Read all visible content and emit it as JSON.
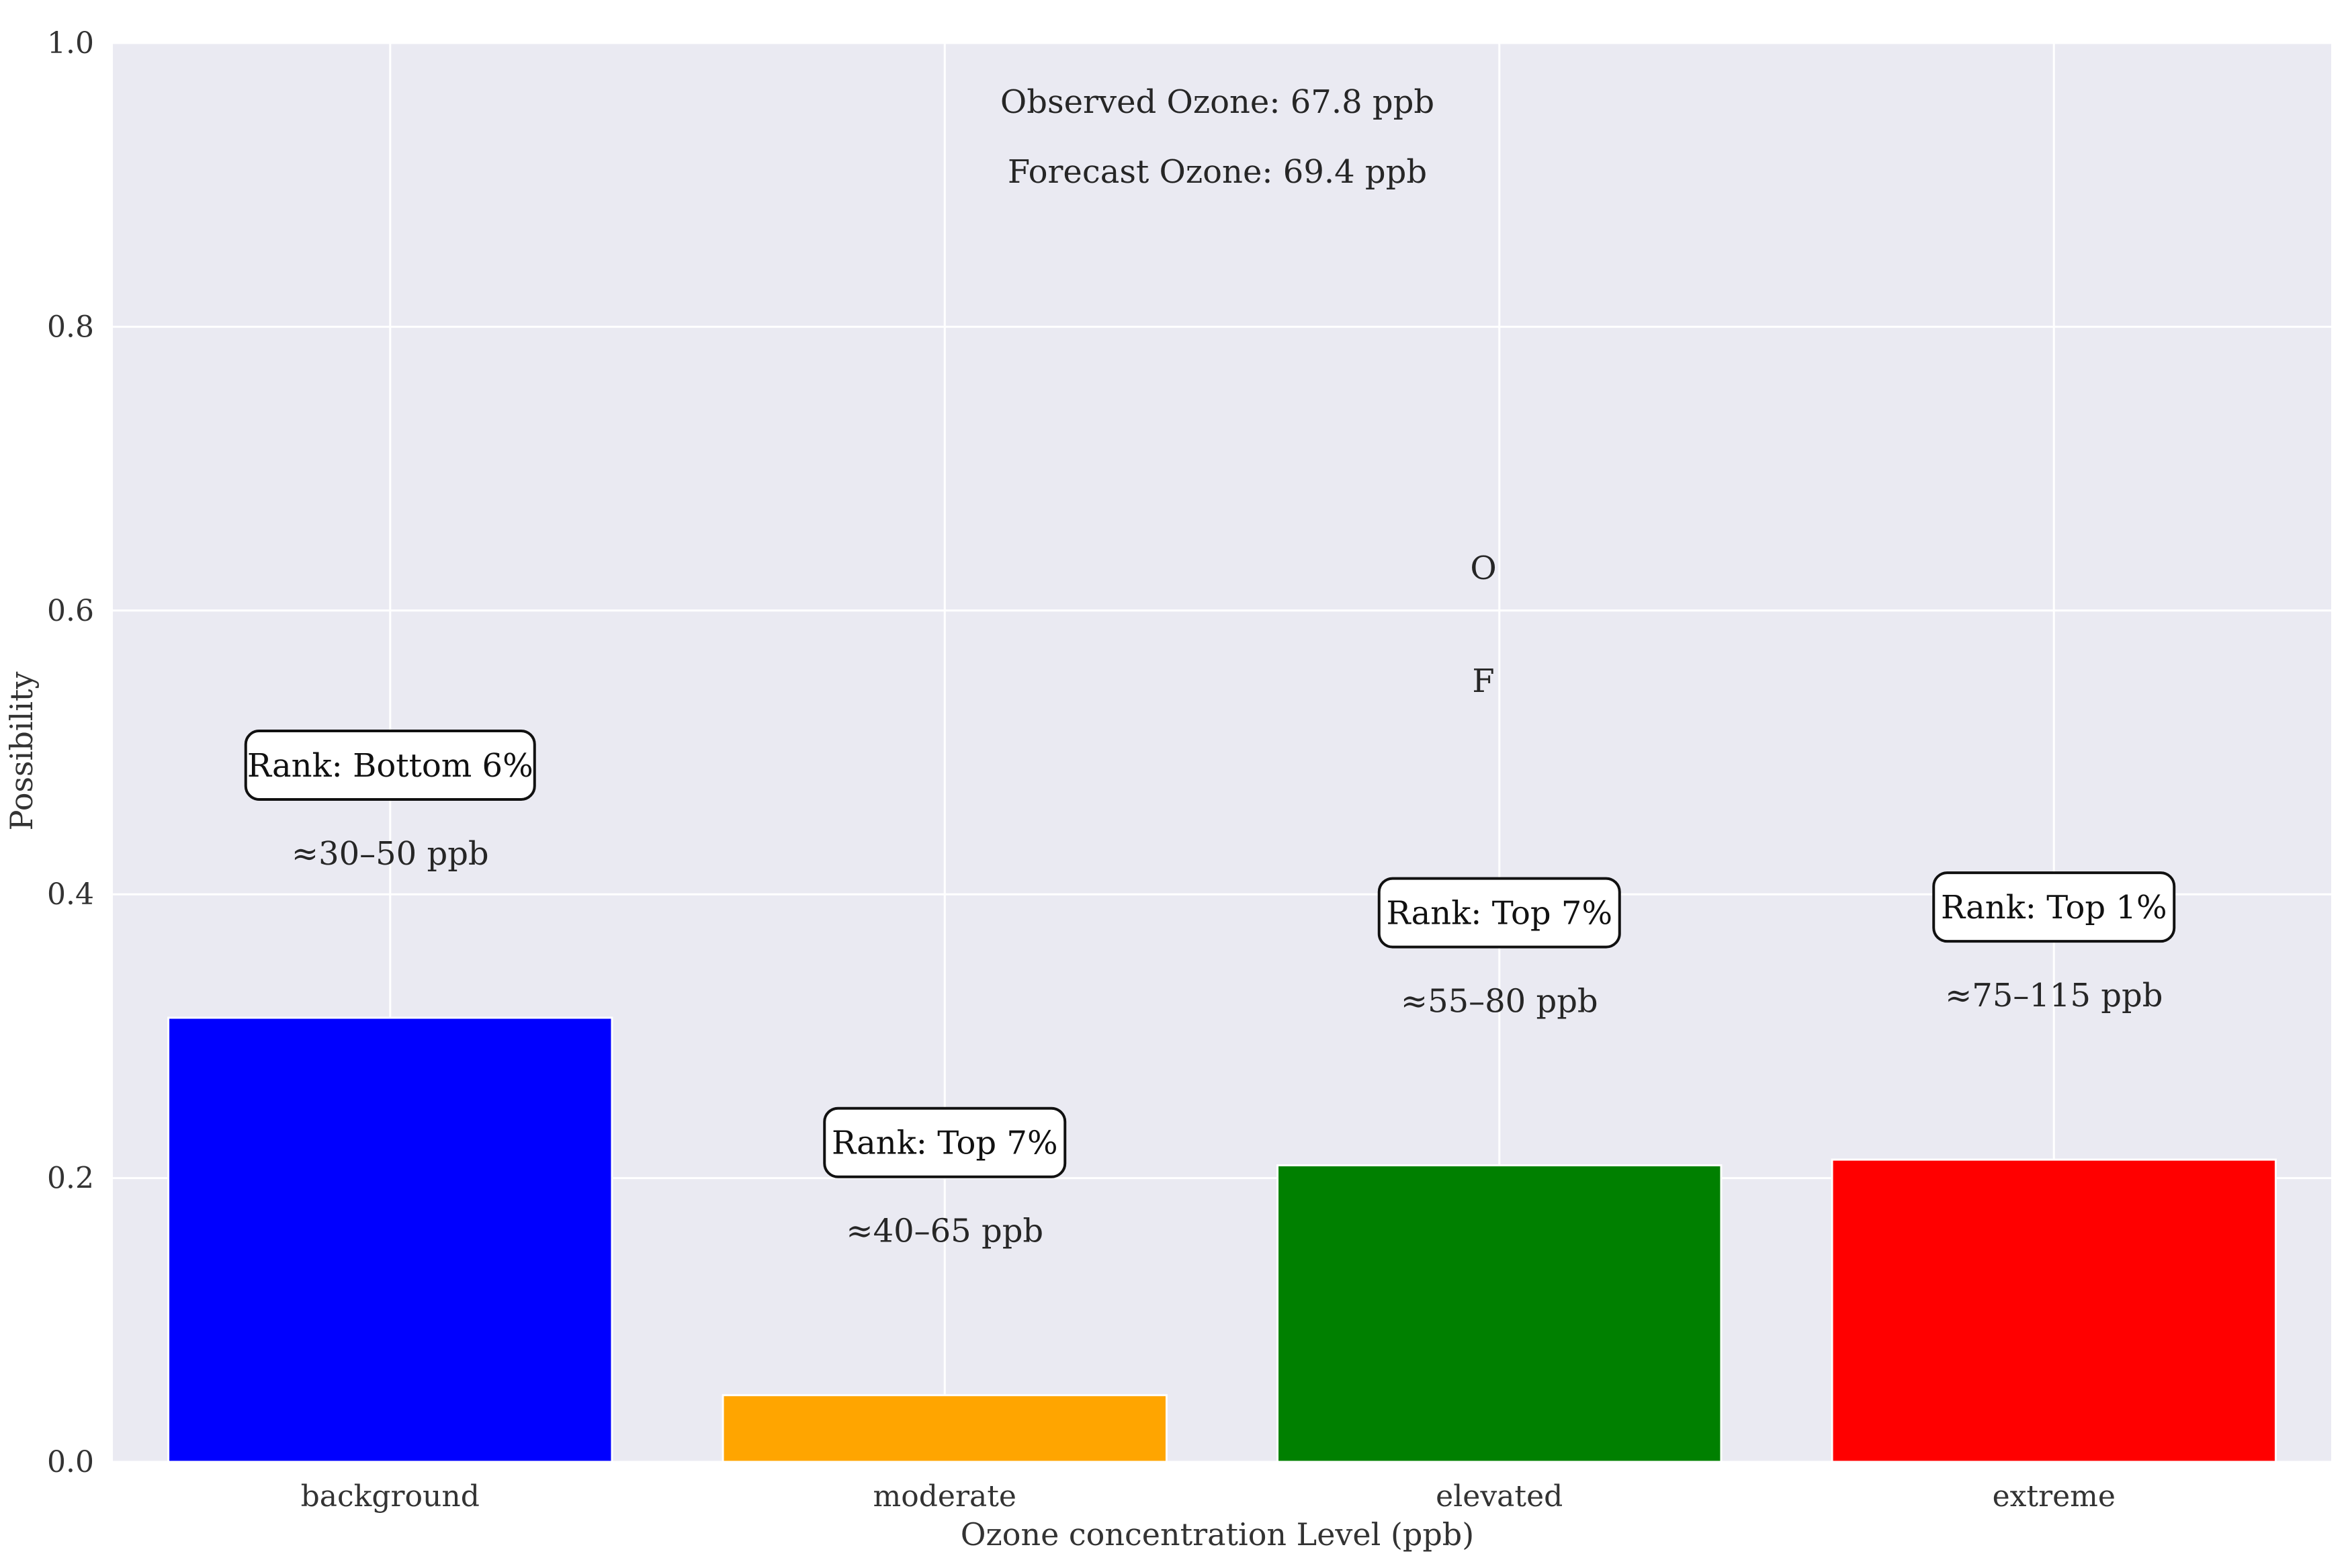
{
  "chart_data": {
    "type": "bar",
    "title": "",
    "xlabel": "Ozone concentration Level (ppb)",
    "ylabel": "Possibility",
    "ylim": [
      0,
      1.0
    ],
    "yticks": [
      "0.0",
      "0.2",
      "0.4",
      "0.6",
      "0.8",
      "1.0"
    ],
    "grid": true,
    "categories": [
      "background",
      "moderate",
      "elevated",
      "extreme"
    ],
    "values": [
      0.313,
      0.047,
      0.209,
      0.213
    ],
    "colors": [
      "#0000ff",
      "#ffa500",
      "#008000",
      "#ff0000"
    ],
    "ranges": [
      "≈30–50 ppb",
      "≈40–65 ppb",
      "≈55–80 ppb",
      "≈75–115 ppb"
    ],
    "ranks": [
      "Rank: Bottom 6%",
      "Rank: Top 7%",
      "Rank: Top 7%",
      "Rank: Top 1%"
    ],
    "annotations": {
      "observed": "Observed Ozone: 67.8 ppb",
      "forecast": "Forecast Ozone: 69.4 ppb",
      "observed_marker": "O",
      "forecast_marker": "F"
    }
  },
  "style": {
    "plot_background": "#eaeaf2",
    "grid_color": "#ffffff"
  }
}
